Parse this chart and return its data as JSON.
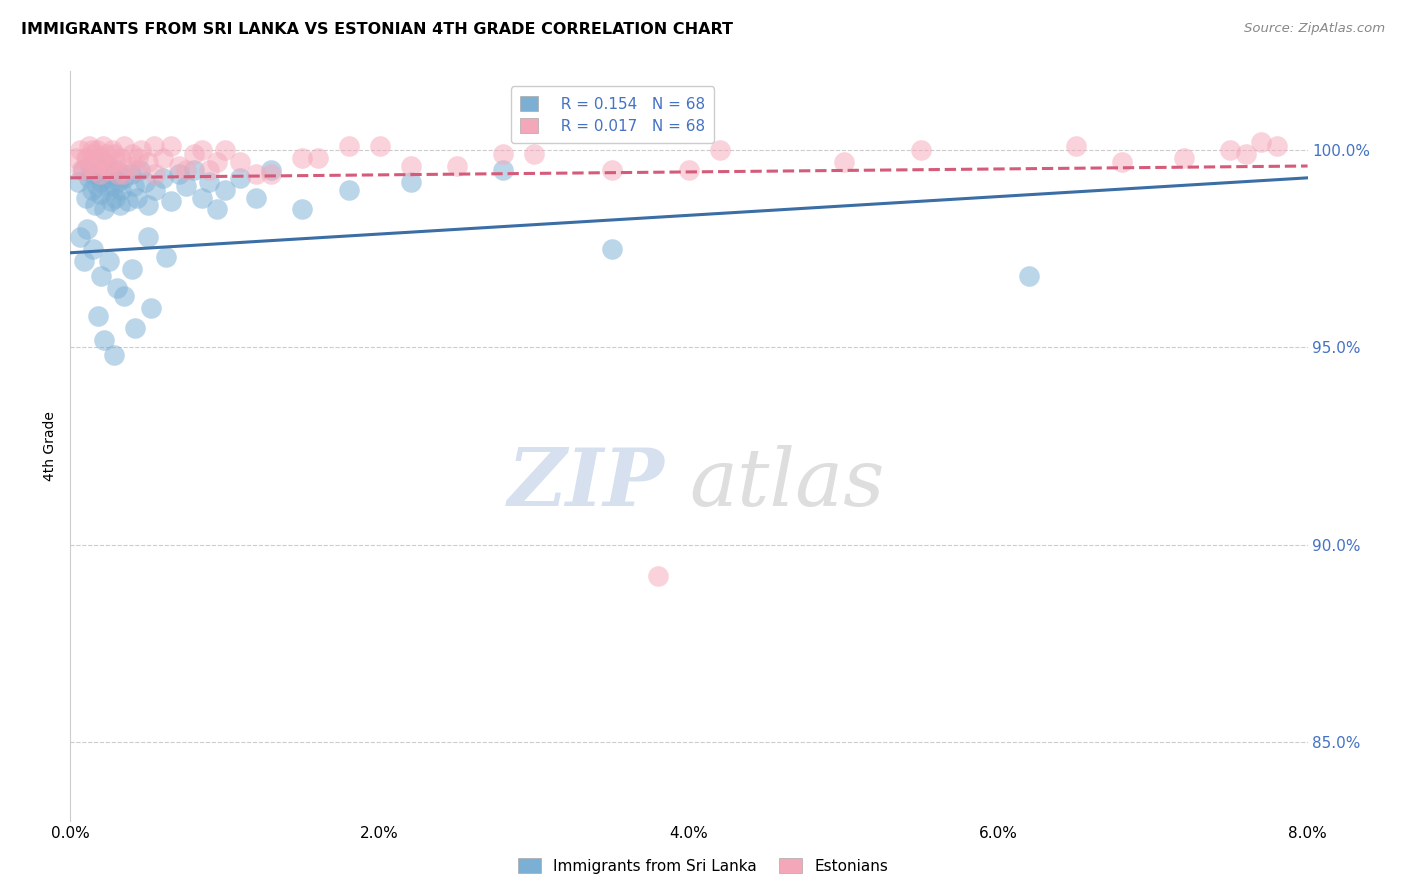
{
  "title": "IMMIGRANTS FROM SRI LANKA VS ESTONIAN 4TH GRADE CORRELATION CHART",
  "source": "Source: ZipAtlas.com",
  "ylabel": "4th Grade",
  "xlim": [
    0.0,
    8.0
  ],
  "ylim": [
    83.0,
    102.0
  ],
  "yticks": [
    85.0,
    90.0,
    95.0,
    100.0
  ],
  "ytick_labels": [
    "85.0%",
    "90.0%",
    "95.0%",
    "100.0%"
  ],
  "xticks": [
    0.0,
    2.0,
    4.0,
    6.0,
    8.0
  ],
  "xtick_labels": [
    "0.0%",
    "2.0%",
    "4.0%",
    "6.0%",
    "8.0%"
  ],
  "blue_color": "#7bafd4",
  "pink_color": "#f4a7b9",
  "blue_line_color": "#3a6ea5",
  "pink_line_color": "#d45b7a",
  "blue_trend_x": [
    0.0,
    8.0
  ],
  "blue_trend_y": [
    97.4,
    99.3
  ],
  "pink_trend_x": [
    0.0,
    8.0
  ],
  "pink_trend_y": [
    99.3,
    99.6
  ],
  "legend_labels": [
    "  R = 0.154   N = 68",
    "  R = 0.017   N = 68"
  ],
  "bottom_legend_labels": [
    "Immigrants from Sri Lanka",
    "Estonians"
  ],
  "watermark_zip": "ZIP",
  "watermark_atlas": "atlas",
  "blue_x": [
    0.05,
    0.08,
    0.1,
    0.12,
    0.13,
    0.14,
    0.15,
    0.16,
    0.17,
    0.18,
    0.19,
    0.2,
    0.21,
    0.22,
    0.23,
    0.24,
    0.25,
    0.26,
    0.27,
    0.28,
    0.29,
    0.3,
    0.31,
    0.32,
    0.33,
    0.35,
    0.37,
    0.39,
    0.41,
    0.43,
    0.45,
    0.48,
    0.5,
    0.55,
    0.6,
    0.65,
    0.7,
    0.75,
    0.8,
    0.85,
    0.9,
    0.95,
    1.0,
    1.1,
    1.2,
    1.3,
    1.5,
    1.8,
    2.2,
    2.8,
    0.06,
    0.09,
    0.11,
    0.15,
    0.2,
    0.25,
    0.3,
    0.4,
    0.5,
    3.5,
    6.2,
    0.18,
    0.22,
    0.28,
    0.35,
    0.42,
    0.52,
    0.62
  ],
  "blue_y": [
    99.2,
    99.5,
    98.8,
    99.3,
    99.6,
    99.0,
    99.4,
    98.6,
    99.1,
    99.5,
    98.9,
    99.2,
    99.7,
    98.5,
    99.3,
    99.6,
    99.0,
    98.7,
    99.4,
    99.1,
    98.8,
    99.5,
    99.2,
    98.6,
    99.0,
    99.3,
    98.7,
    99.4,
    99.1,
    98.8,
    99.5,
    99.2,
    98.6,
    99.0,
    99.3,
    98.7,
    99.4,
    99.1,
    99.5,
    98.8,
    99.2,
    98.5,
    99.0,
    99.3,
    98.8,
    99.5,
    98.5,
    99.0,
    99.2,
    99.5,
    97.8,
    97.2,
    98.0,
    97.5,
    96.8,
    97.2,
    96.5,
    97.0,
    97.8,
    97.5,
    96.8,
    95.8,
    95.2,
    94.8,
    96.3,
    95.5,
    96.0,
    97.3
  ],
  "pink_x": [
    0.04,
    0.06,
    0.08,
    0.1,
    0.12,
    0.13,
    0.15,
    0.16,
    0.17,
    0.18,
    0.19,
    0.2,
    0.21,
    0.22,
    0.23,
    0.25,
    0.27,
    0.29,
    0.31,
    0.33,
    0.35,
    0.38,
    0.4,
    0.43,
    0.46,
    0.5,
    0.55,
    0.6,
    0.65,
    0.7,
    0.8,
    0.9,
    1.0,
    1.1,
    1.3,
    1.5,
    1.8,
    2.2,
    2.8,
    3.5,
    4.2,
    5.0,
    6.5,
    7.2,
    7.5,
    7.6,
    7.7,
    7.8,
    0.07,
    0.11,
    0.14,
    0.24,
    0.28,
    0.34,
    0.44,
    0.54,
    0.75,
    0.85,
    0.95,
    1.2,
    1.6,
    2.0,
    2.5,
    3.0,
    4.0,
    5.5,
    6.8,
    3.8
  ],
  "pink_y": [
    99.8,
    100.0,
    99.5,
    99.8,
    100.1,
    99.6,
    99.9,
    99.5,
    100.0,
    99.7,
    99.4,
    99.8,
    100.1,
    99.6,
    99.9,
    99.5,
    100.0,
    99.7,
    99.4,
    99.8,
    100.1,
    99.6,
    99.9,
    99.5,
    100.0,
    99.7,
    99.4,
    99.8,
    100.1,
    99.6,
    99.9,
    99.5,
    100.0,
    99.7,
    99.4,
    99.8,
    100.1,
    99.6,
    99.9,
    99.5,
    100.0,
    99.7,
    100.1,
    99.8,
    100.0,
    99.9,
    100.2,
    100.1,
    99.5,
    99.8,
    100.0,
    99.6,
    99.9,
    99.4,
    99.8,
    100.1,
    99.5,
    100.0,
    99.7,
    99.4,
    99.8,
    100.1,
    99.6,
    99.9,
    99.5,
    100.0,
    99.7,
    89.2
  ]
}
